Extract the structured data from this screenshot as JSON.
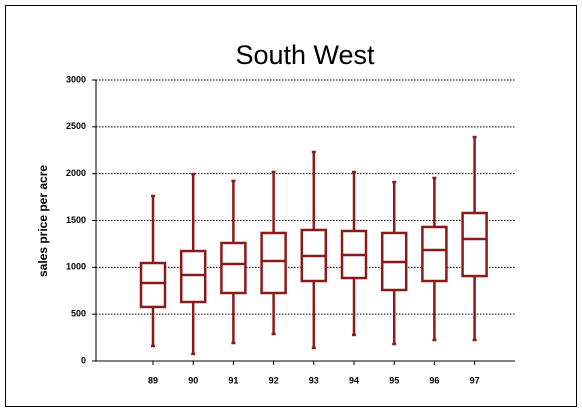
{
  "chart_data": {
    "type": "box",
    "title": "South West",
    "y_label": "sales price per acre",
    "categories": [
      "89",
      "90",
      "91",
      "92",
      "93",
      "94",
      "95",
      "96",
      "97"
    ],
    "min": [
      160,
      75,
      192,
      288,
      139,
      278,
      181,
      224,
      224
    ],
    "q1": [
      577,
      630,
      726,
      726,
      854,
      886,
      758,
      854,
      907
    ],
    "median": [
      833,
      918,
      1036,
      1068,
      1121,
      1132,
      1057,
      1185,
      1302
    ],
    "q3": [
      1046,
      1174,
      1260,
      1367,
      1399,
      1388,
      1367,
      1431,
      1580
    ],
    "max": [
      1762,
      1996,
      1922,
      2018,
      2231,
      2018,
      1911,
      1954,
      2391
    ],
    "color": "#8b1a1a",
    "ylim": [
      0,
      3000
    ],
    "yticks": [
      0,
      500,
      1000,
      1500,
      2000,
      2500,
      3000
    ],
    "grid": true
  }
}
